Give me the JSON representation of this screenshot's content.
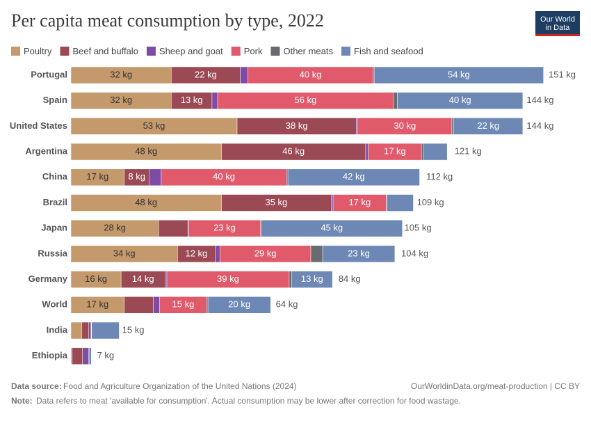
{
  "chart_data": {
    "type": "stacked-bar-horizontal",
    "title": "Per capita meat consumption by type, 2022",
    "logo": [
      "Our World",
      "in Data"
    ],
    "categories": [
      "Portugal",
      "Spain",
      "United States",
      "Argentina",
      "China",
      "Brazil",
      "Japan",
      "Russia",
      "Germany",
      "World",
      "India",
      "Ethiopia"
    ],
    "series": [
      {
        "name": "Poultry",
        "color": "#c49a6c",
        "values": [
          32,
          32,
          53,
          48,
          17,
          48,
          28,
          34,
          16,
          17,
          3.5,
          0.4
        ],
        "value_labels": [
          "32 kg",
          "32 kg",
          "53 kg",
          "48 kg",
          "17 kg",
          "48 kg",
          "28 kg",
          "34 kg",
          "16 kg",
          "17 kg",
          null,
          null
        ]
      },
      {
        "name": "Beef and buffalo",
        "color": "#9b4a55",
        "values": [
          22,
          13,
          38,
          46,
          8,
          35,
          9.3,
          12,
          14,
          9.3,
          2.2,
          3.3
        ],
        "value_labels": [
          "22 kg",
          "13 kg",
          "38 kg",
          "46 kg",
          "8 kg",
          "35 kg",
          null,
          "12 kg",
          "14 kg",
          null,
          null,
          null
        ]
      },
      {
        "name": "Sheep and goat",
        "color": "#7f4ca5",
        "values": [
          2.4,
          1.8,
          0.5,
          0.8,
          3.8,
          0.6,
          0.2,
          1.5,
          0.6,
          2,
          0.7,
          2
        ],
        "value_labels": [
          null,
          null,
          null,
          null,
          null,
          null,
          null,
          null,
          null,
          null,
          null,
          null
        ]
      },
      {
        "name": "Pork",
        "color": "#e05a6b",
        "values": [
          40,
          56,
          30,
          17,
          40,
          17,
          23,
          29,
          39,
          15,
          0.1,
          0
        ],
        "value_labels": [
          "40 kg",
          "56 kg",
          "30 kg",
          "17 kg",
          "40 kg",
          "17 kg",
          "23 kg",
          "29 kg",
          "39 kg",
          "15 kg",
          null,
          null
        ]
      },
      {
        "name": "Other meats",
        "color": "#686c70",
        "values": [
          0.3,
          1.3,
          0.6,
          0.7,
          0.4,
          0.2,
          0.2,
          3.8,
          0.8,
          0.4,
          0.1,
          0.1
        ],
        "value_labels": [
          null,
          null,
          null,
          null,
          null,
          null,
          null,
          null,
          null,
          null,
          null,
          null
        ]
      },
      {
        "name": "Fish and seafood",
        "color": "#6e88b5",
        "values": [
          54,
          40,
          22,
          7.5,
          42,
          8.4,
          45,
          23,
          13,
          20,
          8.8,
          0.7
        ],
        "value_labels": [
          "54 kg",
          "40 kg",
          "22 kg",
          null,
          "42 kg",
          null,
          "45 kg",
          "23 kg",
          "13 kg",
          "20 kg",
          null,
          null
        ]
      }
    ],
    "totals": {
      "values": [
        151,
        144,
        144,
        121,
        112,
        109,
        105,
        104,
        84,
        64,
        15,
        7
      ],
      "value_labels": [
        "151 kg",
        "144 kg",
        "144 kg",
        "121 kg",
        "112 kg",
        "109 kg",
        "105 kg",
        "104 kg",
        "84 kg",
        "64 kg",
        "15 kg",
        "7 kg"
      ]
    },
    "source_label": "Data source:",
    "source": "Food and Agriculture Organization of the United Nations (2024)",
    "url": "OurWorldinData.org/meat-production | CC BY",
    "note_label": "Note:",
    "note": "Data refers to meat 'available for consumption'. Actual consumption may be lower after correction for food wastage."
  }
}
